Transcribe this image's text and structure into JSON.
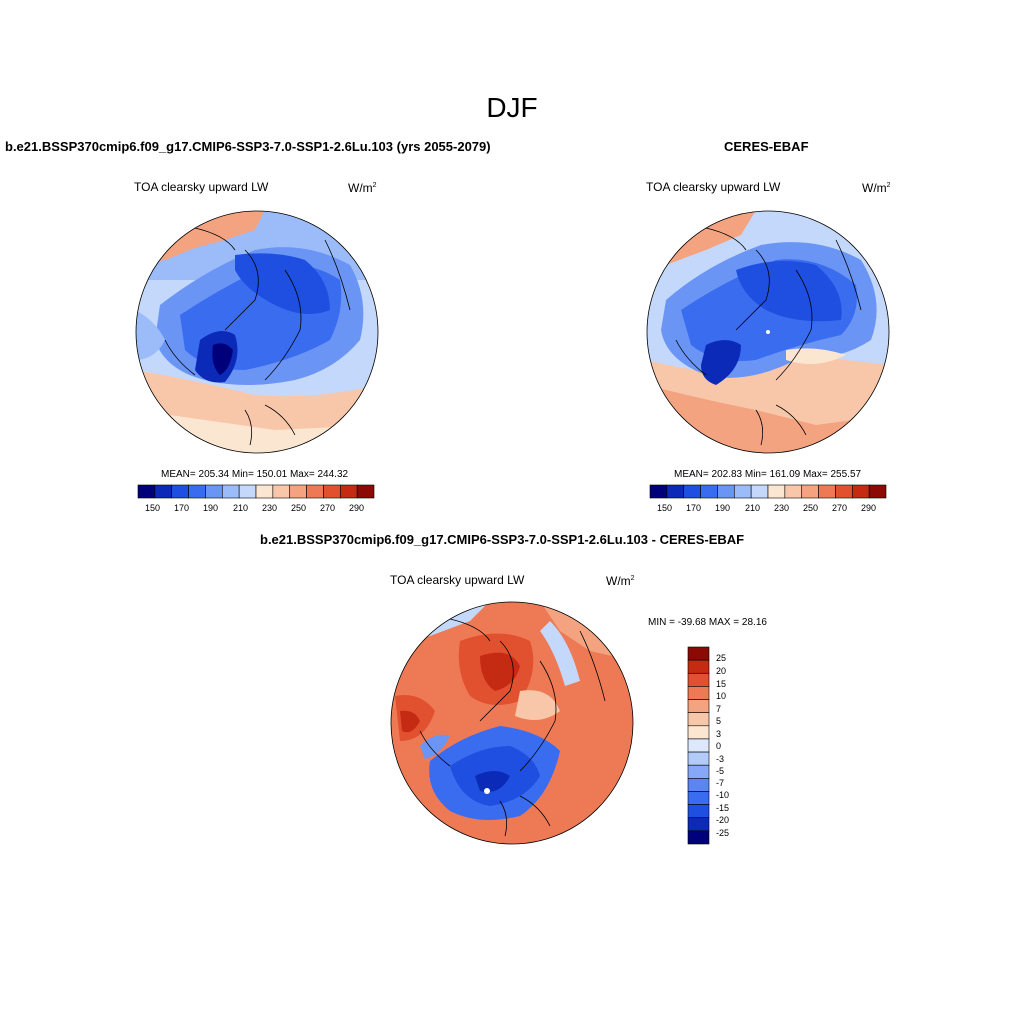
{
  "title": "DJF",
  "colors": {
    "scale": [
      "#00007a",
      "#0b2ab8",
      "#1e4fe0",
      "#3a6cf0",
      "#6b95f5",
      "#9bbcf8",
      "#c4d8fb",
      "#fbe6d2",
      "#f8c7aa",
      "#f4a381",
      "#ee7a55",
      "#e2512f",
      "#c52b13",
      "#8b0a05"
    ],
    "diff_scale": [
      "#00007a",
      "#0b2ab8",
      "#1e4fe0",
      "#3a6cf0",
      "#5a85f2",
      "#86a8f6",
      "#b3cbf9",
      "#dde8fc",
      "#fbe6d2",
      "#f8c7aa",
      "#f4a381",
      "#ee7a55",
      "#e2512f",
      "#c52b13",
      "#8b0a05"
    ]
  },
  "panels": {
    "model": {
      "case_title": "b.e21.BSSP370cmip6.f09_g17.CMIP6-SSP3-7.0-SSP1-2.6Lu.103 (yrs 2055-2079)",
      "var_label": "TOA clearsky upward LW",
      "units": "W/m",
      "units_exp": "2",
      "stats": "MEAN= 205.34  Min= 150.01  Max= 244.32",
      "mean": 205.34,
      "min": 150.01,
      "max": 244.32,
      "colorbar_labels": [
        "150",
        "170",
        "190",
        "210",
        "230",
        "250",
        "270",
        "290"
      ]
    },
    "obs": {
      "case_title": "CERES-EBAF",
      "var_label": "TOA clearsky upward LW",
      "units": "W/m",
      "units_exp": "2",
      "stats": "MEAN= 202.83  Min= 161.09  Max= 255.57",
      "mean": 202.83,
      "min": 161.09,
      "max": 255.57,
      "colorbar_labels": [
        "150",
        "170",
        "190",
        "210",
        "230",
        "250",
        "270",
        "290"
      ]
    },
    "diff": {
      "case_title": "b.e21.BSSP370cmip6.f09_g17.CMIP6-SSP3-7.0-SSP1-2.6Lu.103 - CERES-EBAF",
      "var_label": "TOA clearsky upward LW",
      "units": "W/m",
      "units_exp": "2",
      "stats": "MIN = -39.68 MAX =  28.16",
      "min": -39.68,
      "max": 28.16,
      "colorbar_labels": [
        "25",
        "20",
        "15",
        "10",
        "7",
        "5",
        "3",
        "0",
        "-3",
        "-5",
        "-7",
        "-10",
        "-15",
        "-20",
        "-25"
      ]
    }
  }
}
